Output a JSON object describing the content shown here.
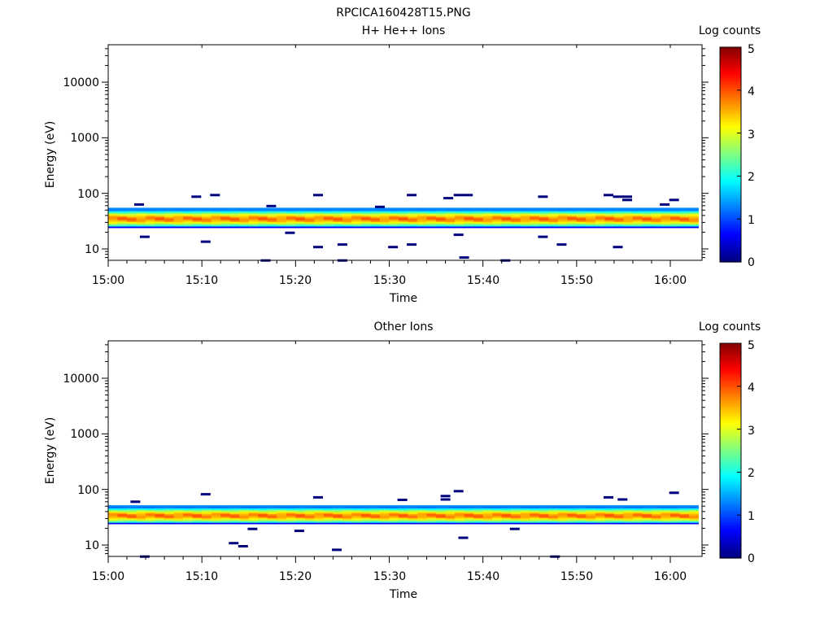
{
  "figure_title": "RPCICA160428T15.PNG",
  "chart_data": [
    {
      "type": "heatmap",
      "title": "H+ He++ Ions",
      "xlabel": "Time",
      "ylabel": "Energy (eV)",
      "x_ticks": [
        "15:00",
        "15:10",
        "15:20",
        "15:30",
        "15:40",
        "15:50",
        "16:00"
      ],
      "x_tick_minutes": [
        0,
        10,
        20,
        30,
        40,
        50,
        60
      ],
      "x_range_minutes": [
        0,
        63
      ],
      "y_scale": "log",
      "y_ticks": [
        "10",
        "100",
        "1000",
        "10000"
      ],
      "y_tick_values": [
        10,
        100,
        1000,
        10000
      ],
      "ylim": [
        6,
        45000
      ],
      "colorbar": {
        "label": "Log counts",
        "range": [
          0,
          5
        ],
        "ticks": [
          "0",
          "1",
          "2",
          "3",
          "4",
          "5"
        ]
      },
      "band": {
        "energy_low": 24,
        "energy_high": 55,
        "peak_energy": 35,
        "peak_log_counts": 3.8
      },
      "scattered_counts": [
        {
          "t": 3.3,
          "e": 63,
          "v": 0.1
        },
        {
          "t": 3.9,
          "e": 16.5,
          "v": 0.1
        },
        {
          "t": 9.4,
          "e": 87,
          "v": 0.1
        },
        {
          "t": 10.4,
          "e": 13.5,
          "v": 0.1
        },
        {
          "t": 11.4,
          "e": 93,
          "v": 0.1
        },
        {
          "t": 16.8,
          "e": 6.2,
          "v": 0.1
        },
        {
          "t": 17.4,
          "e": 59,
          "v": 0.1
        },
        {
          "t": 19.4,
          "e": 19.5,
          "v": 0.1
        },
        {
          "t": 22.4,
          "e": 93,
          "v": 0.1
        },
        {
          "t": 22.4,
          "e": 10.8,
          "v": 0.1
        },
        {
          "t": 25.0,
          "e": 12.0,
          "v": 0.1
        },
        {
          "t": 25.0,
          "e": 6.2,
          "v": 0.1
        },
        {
          "t": 29.0,
          "e": 57,
          "v": 0.1
        },
        {
          "t": 30.4,
          "e": 10.8,
          "v": 0.1
        },
        {
          "t": 32.4,
          "e": 93,
          "v": 0.1
        },
        {
          "t": 32.4,
          "e": 12.0,
          "v": 0.1
        },
        {
          "t": 36.3,
          "e": 82,
          "v": 0.1
        },
        {
          "t": 37.4,
          "e": 93,
          "v": 0.1
        },
        {
          "t": 37.4,
          "e": 18.0,
          "v": 0.1
        },
        {
          "t": 38.4,
          "e": 93,
          "v": 0.1
        },
        {
          "t": 38.0,
          "e": 7.0,
          "v": 0.1
        },
        {
          "t": 42.4,
          "e": 6.2,
          "v": 0.1
        },
        {
          "t": 46.4,
          "e": 87,
          "v": 0.1
        },
        {
          "t": 46.4,
          "e": 16.5,
          "v": 0.1
        },
        {
          "t": 48.4,
          "e": 12.0,
          "v": 0.1
        },
        {
          "t": 53.4,
          "e": 93,
          "v": 0.1
        },
        {
          "t": 54.4,
          "e": 87,
          "v": 0.1
        },
        {
          "t": 55.4,
          "e": 87,
          "v": 0.1
        },
        {
          "t": 55.4,
          "e": 76,
          "v": 0.1
        },
        {
          "t": 54.4,
          "e": 10.8,
          "v": 0.1
        },
        {
          "t": 59.4,
          "e": 63,
          "v": 0.1
        },
        {
          "t": 60.4,
          "e": 76,
          "v": 0.1
        }
      ]
    },
    {
      "type": "heatmap",
      "title": "Other Ions",
      "xlabel": "Time",
      "ylabel": "Energy (eV)",
      "x_ticks": [
        "15:00",
        "15:10",
        "15:20",
        "15:30",
        "15:40",
        "15:50",
        "16:00"
      ],
      "x_tick_minutes": [
        0,
        10,
        20,
        30,
        40,
        50,
        60
      ],
      "x_range_minutes": [
        0,
        63
      ],
      "y_scale": "log",
      "y_ticks": [
        "10",
        "100",
        "1000",
        "10000"
      ],
      "y_tick_values": [
        10,
        100,
        1000,
        10000
      ],
      "ylim": [
        6,
        45000
      ],
      "colorbar": {
        "label": "Log counts",
        "range": [
          0,
          5
        ],
        "ticks": [
          "0",
          "1",
          "2",
          "3",
          "4",
          "5"
        ]
      },
      "band": {
        "energy_low": 24,
        "energy_high": 52,
        "peak_energy": 34,
        "peak_log_counts": 3.8
      },
      "scattered_counts": [
        {
          "t": 2.9,
          "e": 60,
          "v": 0.1
        },
        {
          "t": 3.9,
          "e": 6.2,
          "v": 0.1
        },
        {
          "t": 10.4,
          "e": 82,
          "v": 0.1
        },
        {
          "t": 13.4,
          "e": 10.8,
          "v": 0.1
        },
        {
          "t": 14.4,
          "e": 9.5,
          "v": 0.1
        },
        {
          "t": 15.4,
          "e": 19.5,
          "v": 0.1
        },
        {
          "t": 20.4,
          "e": 18.0,
          "v": 0.1
        },
        {
          "t": 22.4,
          "e": 72,
          "v": 0.1
        },
        {
          "t": 24.4,
          "e": 8.2,
          "v": 0.1
        },
        {
          "t": 31.4,
          "e": 65,
          "v": 0.1
        },
        {
          "t": 36.0,
          "e": 76,
          "v": 0.1
        },
        {
          "t": 36.0,
          "e": 66,
          "v": 0.1
        },
        {
          "t": 37.4,
          "e": 93,
          "v": 0.1
        },
        {
          "t": 37.9,
          "e": 13.5,
          "v": 0.1
        },
        {
          "t": 43.4,
          "e": 19.5,
          "v": 0.1
        },
        {
          "t": 47.7,
          "e": 6.2,
          "v": 0.1
        },
        {
          "t": 53.4,
          "e": 72,
          "v": 0.1
        },
        {
          "t": 54.9,
          "e": 66,
          "v": 0.1
        },
        {
          "t": 60.4,
          "e": 87,
          "v": 0.1
        }
      ]
    }
  ]
}
